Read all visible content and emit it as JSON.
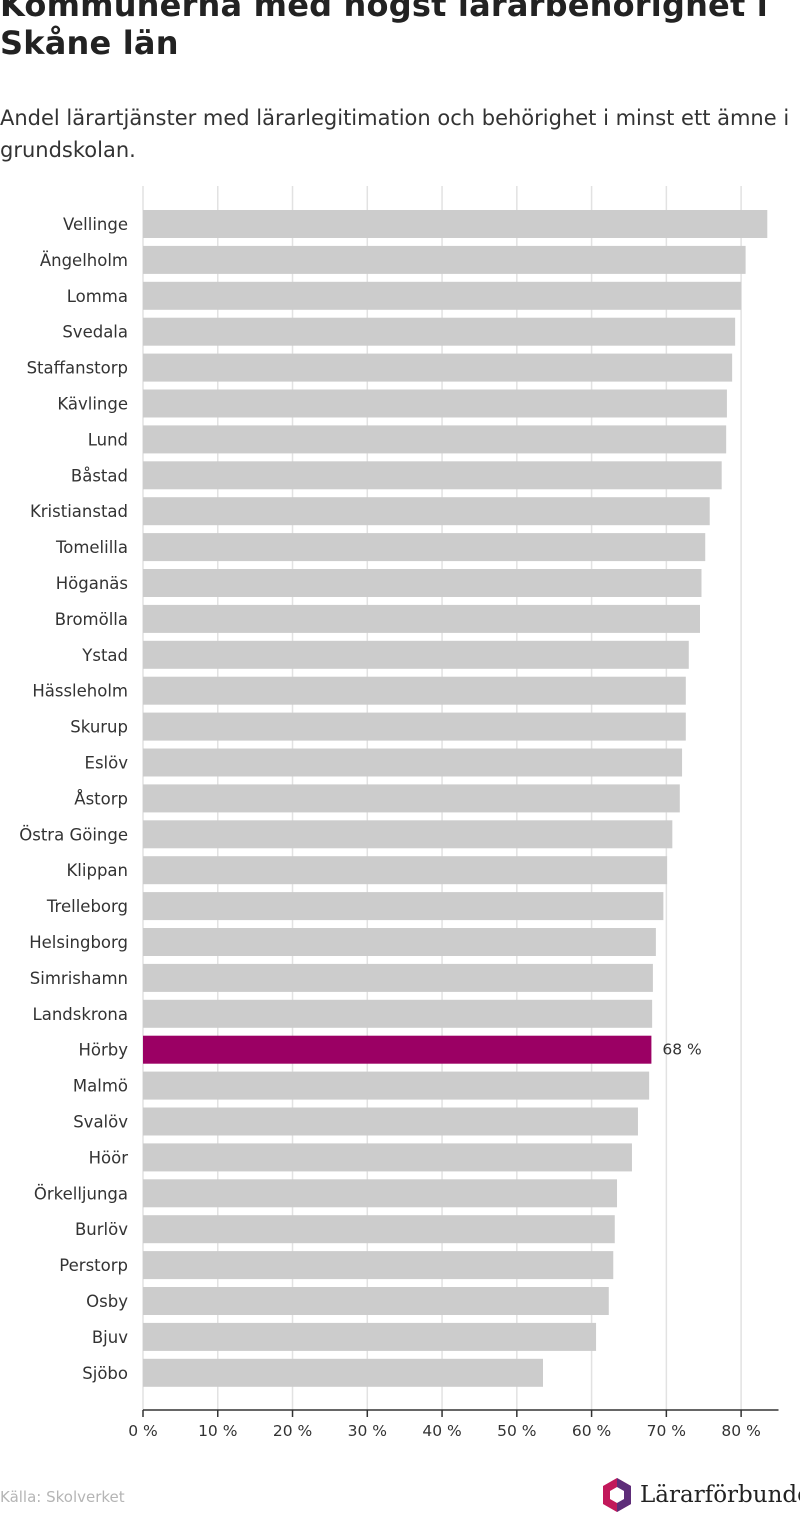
{
  "header": {
    "title": "Kommunerna med högst lärarbehörighet i Skåne län",
    "subtitle": "Andel lärartjänster med lärarlegitimation och behörighet i minst ett ämne i grundskolan."
  },
  "footer": {
    "source": "Källa: Skolverket",
    "logo_text": "Lärarförbundet"
  },
  "colors": {
    "bar": "#cccccc",
    "highlight": "#9b0064",
    "grid": "#e2e2e2",
    "axis": "#333333",
    "logo_pink": "#c2185b",
    "logo_purple": "#5e2d79"
  },
  "chart_data": {
    "type": "bar",
    "orientation": "horizontal",
    "categories": [
      "Vellinge",
      "Ängelholm",
      "Lomma",
      "Svedala",
      "Staffanstorp",
      "Kävlinge",
      "Lund",
      "Båstad",
      "Kristianstad",
      "Tomelilla",
      "Höganäs",
      "Bromölla",
      "Ystad",
      "Hässleholm",
      "Skurup",
      "Eslöv",
      "Åstorp",
      "Östra Göinge",
      "Klippan",
      "Trelleborg",
      "Helsingborg",
      "Simrishamn",
      "Landskrona",
      "Hörby",
      "Malmö",
      "Svalöv",
      "Höör",
      "Örkelljunga",
      "Burlöv",
      "Perstorp",
      "Osby",
      "Bjuv",
      "Sjöbo"
    ],
    "values": [
      83.5,
      80.6,
      80.0,
      79.2,
      78.8,
      78.1,
      78.0,
      77.4,
      75.8,
      75.2,
      74.7,
      74.5,
      73.0,
      72.6,
      72.6,
      72.1,
      71.8,
      70.8,
      70.1,
      69.6,
      68.6,
      68.2,
      68.1,
      68.0,
      67.7,
      66.2,
      65.4,
      63.4,
      63.1,
      62.9,
      62.3,
      60.6,
      53.5
    ],
    "highlight": {
      "category": "Hörby",
      "label": "68 %"
    },
    "xlim": [
      0,
      85
    ],
    "xticks": [
      {
        "value": 0,
        "label": "0 %"
      },
      {
        "value": 10,
        "label": "10 %"
      },
      {
        "value": 20,
        "label": "20 %"
      },
      {
        "value": 30,
        "label": "30 %"
      },
      {
        "value": 40,
        "label": "40 %"
      },
      {
        "value": 50,
        "label": "50 %"
      },
      {
        "value": 60,
        "label": "60 %"
      },
      {
        "value": 70,
        "label": "70 %"
      },
      {
        "value": 80,
        "label": "80 %"
      }
    ],
    "grid": true,
    "xlabel": "",
    "ylabel": ""
  }
}
